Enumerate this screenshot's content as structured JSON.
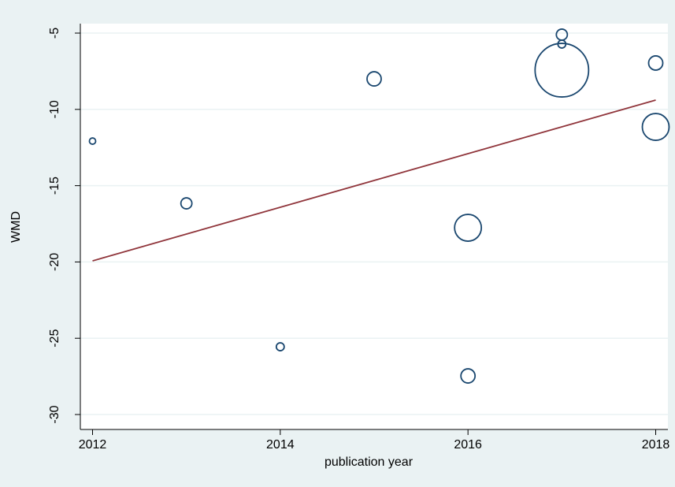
{
  "chart_data": {
    "type": "scatter",
    "xlabel": "publication year",
    "ylabel": "WMD",
    "x": [
      2012,
      2013,
      2014,
      2015,
      2016,
      2016,
      2017,
      2017,
      2017,
      2018,
      2018
    ],
    "values": [
      -12.08,
      -16.16,
      -25.56,
      -8.0,
      -17.76,
      -27.47,
      -5.1,
      -5.72,
      -7.43,
      -6.96,
      -11.15
    ],
    "sizes": [
      16,
      49,
      25,
      81,
      289,
      81,
      49,
      25,
      1156,
      81,
      289
    ],
    "color": "#1a476f",
    "fit": {
      "x": [
        2012,
        2018
      ],
      "values": [
        -19.93,
        -9.39
      ],
      "color": "#90353b"
    },
    "xlim": [
      2011.87,
      2018.13
    ],
    "ylim": [
      -30.98,
      -4.38
    ],
    "xticks": [
      2012,
      2014,
      2016,
      2018
    ],
    "yticks": [
      -30,
      -25,
      -20,
      -15,
      -10,
      -5
    ],
    "grid": true
  }
}
